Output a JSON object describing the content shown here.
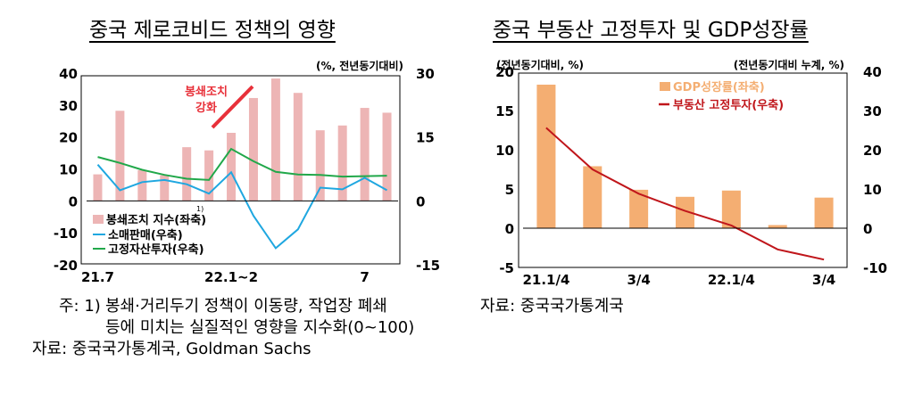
{
  "left_panel": {
    "title": "중국 제로코비드 정책의 영향",
    "footnote_marker": "주: 1)",
    "footnote_line1": "봉쇄·거리두기 정책이 이동량, 작업장 폐쇄",
    "footnote_line2": "등에 미치는 실질적인 영향을 지수화(0~100)",
    "source": "자료: 중국국가통계국, Goldman Sachs"
  },
  "right_panel": {
    "title": "중국 부동산 고정투자 및 GDP성장률",
    "source": "자료: 중국국가통계국"
  },
  "colors": {
    "lockdown_bar": "#EDB5B5",
    "retail_line": "#1FA7E0",
    "fai_line": "#21A84A",
    "gdp_bar": "#F4AE72",
    "property_line": "#C0161B",
    "annotation": "#E8313A"
  },
  "chart_data": [
    {
      "type": "bar+line",
      "title": "중국 제로코비드 정책의 영향",
      "unit_label": "(%, 전년동기대비)",
      "left_axis": {
        "ylim": [
          -20,
          40
        ],
        "ticks": [
          "40",
          "30",
          "20",
          "10",
          "0",
          "-10",
          "-20"
        ]
      },
      "right_axis": {
        "ylim": [
          -15,
          30
        ],
        "ticks": [
          "30",
          "15",
          "0",
          "-15"
        ]
      },
      "x_tick_labels": [
        "21.7",
        "22.1~2",
        "7"
      ],
      "annotation": {
        "line1": "봉쇄조치",
        "line2": "강화"
      },
      "legend": {
        "lockdown": "봉쇄조치 지수",
        "lockdown_sup": "1)",
        "lockdown_suffix": "(좌축)",
        "retail": "소매판매(우축)",
        "fai": "고정자산투자(우축)"
      },
      "series": [
        {
          "name": "봉쇄조치 지수(좌축)",
          "axis": "left",
          "kind": "bar",
          "values": [
            8.3,
            28.2,
            9.6,
            8.0,
            16.8,
            15.8,
            21.3,
            32.2,
            38.3,
            33.8,
            22.1,
            23.6,
            29.1,
            27.6
          ]
        },
        {
          "name": "소매판매(우축)",
          "axis": "right",
          "kind": "line",
          "values": [
            8.5,
            2.5,
            4.4,
            4.9,
            3.9,
            1.7,
            6.7,
            -3.5,
            -11.1,
            -6.7,
            3.1,
            2.7,
            5.4,
            2.5
          ]
        },
        {
          "name": "고정자산투자(우축)",
          "axis": "right",
          "kind": "line",
          "values": [
            10.3,
            8.9,
            7.3,
            6.1,
            5.2,
            4.9,
            12.2,
            9.3,
            6.8,
            6.2,
            6.1,
            5.7,
            5.8,
            5.9
          ]
        }
      ]
    },
    {
      "type": "bar+line",
      "title": "중국 부동산 고정투자 및 GDP성장률",
      "left_unit_label": "(전년동기대비, %)",
      "right_unit_label": "(전년동기대비 누계, %)",
      "left_axis": {
        "ylim": [
          -5,
          20
        ],
        "ticks": [
          "20",
          "15",
          "10",
          "5",
          "0",
          "-5"
        ]
      },
      "right_axis": {
        "ylim": [
          -10,
          40
        ],
        "ticks": [
          "40",
          "30",
          "20",
          "10",
          "0",
          "-10"
        ]
      },
      "x_tick_labels": [
        "21.1/4",
        "3/4",
        "22.1/4",
        "3/4"
      ],
      "legend": {
        "gdp": "GDP성장률(좌축)",
        "property": "부동산 고정투자(우축)"
      },
      "series": [
        {
          "name": "GDP성장률(좌축)",
          "axis": "left",
          "kind": "bar",
          "values": [
            18.3,
            7.9,
            4.9,
            4.0,
            4.8,
            0.4,
            3.9
          ]
        },
        {
          "name": "부동산 고정투자(우축)",
          "axis": "right",
          "kind": "line",
          "values": [
            25.6,
            15.0,
            8.8,
            4.4,
            0.7,
            -5.4,
            -8.0
          ]
        }
      ]
    }
  ]
}
